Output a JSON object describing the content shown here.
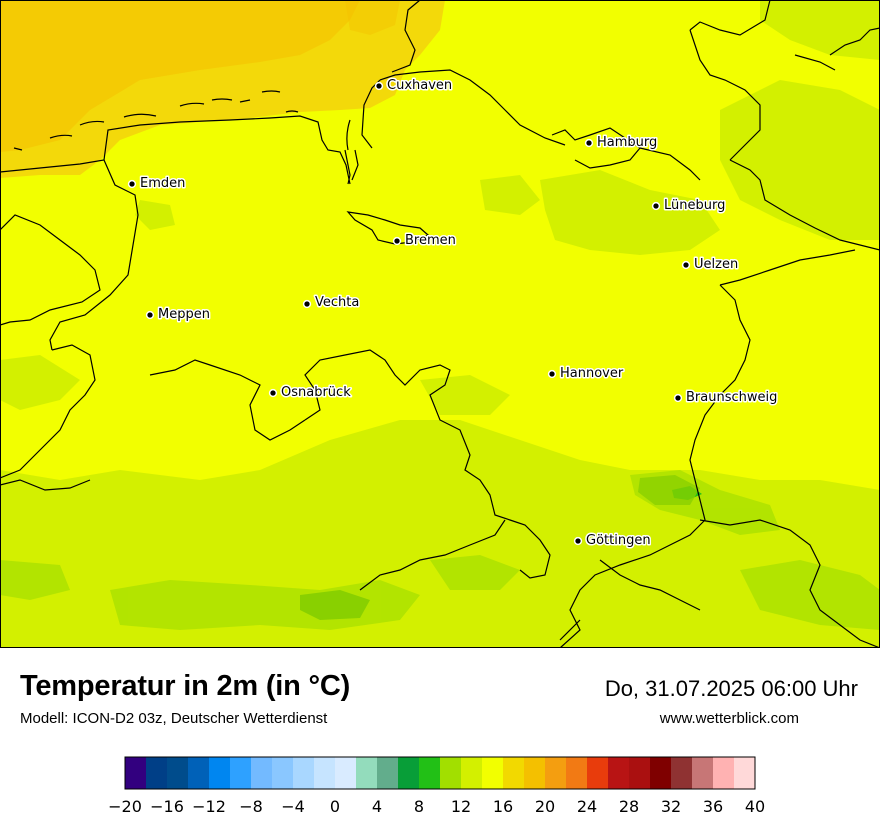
{
  "title": "Temperatur in 2m (in °C)",
  "subtitle": "Modell: ICON-D2 03z, Deutscher Wetterdienst",
  "datetime": "Do, 31.07.2025 06:00 Uhr",
  "website": "www.wetterblick.com",
  "cities": [
    {
      "id": "cuxhaven",
      "name": "Cuxhaven"
    },
    {
      "id": "hamburg",
      "name": "Hamburg"
    },
    {
      "id": "emden",
      "name": "Emden"
    },
    {
      "id": "lueneburg",
      "name": "Lüneburg"
    },
    {
      "id": "bremen",
      "name": "Bremen"
    },
    {
      "id": "uelzen",
      "name": "Uelzen"
    },
    {
      "id": "vechta",
      "name": "Vechta"
    },
    {
      "id": "meppen",
      "name": "Meppen"
    },
    {
      "id": "hannover",
      "name": "Hannover"
    },
    {
      "id": "osnabrueck",
      "name": "Osnabrück"
    },
    {
      "id": "braunschweig",
      "name": "Braunschweig"
    },
    {
      "id": "goettingen",
      "name": "Göttingen"
    }
  ],
  "legend": {
    "min": -20,
    "max": 40,
    "step": 2,
    "tick_labels": [
      "−20",
      "−16",
      "−12",
      "−8",
      "−4",
      "0",
      "4",
      "8",
      "12",
      "16",
      "20",
      "24",
      "28",
      "32",
      "36",
      "40"
    ],
    "colors": [
      "#32007f",
      "#003f87",
      "#004c8c",
      "#0061b8",
      "#0086f0",
      "#2ea1ff",
      "#73baff",
      "#8ac7ff",
      "#a9d7ff",
      "#c6e4ff",
      "#d9ebff",
      "#93dcbc",
      "#62ad8c",
      "#089e38",
      "#22c016",
      "#a2df00",
      "#d3f000",
      "#f2ff00",
      "#f2d900",
      "#f4c000",
      "#f49e10",
      "#f27a14",
      "#e83c0c",
      "#b81414",
      "#aa1010",
      "#7f0000",
      "#8f3232",
      "#c77676",
      "#ffb2b2",
      "#ffd9d9"
    ]
  }
}
